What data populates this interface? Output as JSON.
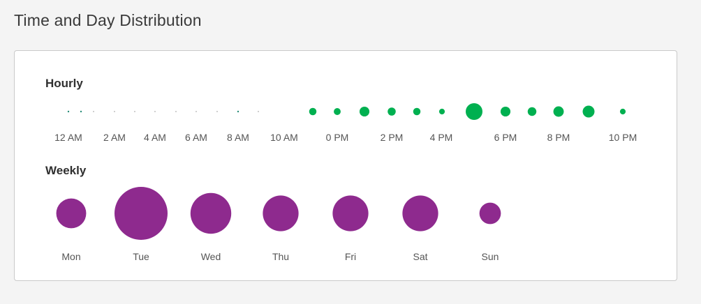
{
  "page": {
    "title": "Time and Day Distribution"
  },
  "colors": {
    "hourly": "#00b050",
    "weekly": "#8e2a8e",
    "tiny": "#2a8e7a"
  },
  "chart_data": [
    {
      "type": "scatter",
      "title": "Hourly",
      "categories": [
        "12 AM",
        "1 AM",
        "2 AM",
        "3 AM",
        "4 AM",
        "5 AM",
        "6 AM",
        "7 AM",
        "8 AM",
        "9 AM",
        "10 AM",
        "11 AM",
        "0 PM",
        "1 PM",
        "2 PM",
        "3 PM",
        "4 PM",
        "5 PM",
        "6 PM",
        "7 PM",
        "8 PM",
        "9 PM",
        "10 PM",
        "11 PM"
      ],
      "values": [
        0.5,
        0.5,
        0.2,
        0.2,
        0.2,
        0.2,
        0.2,
        0.2,
        0.2,
        0.5,
        0.2,
        0,
        25,
        22,
        45,
        30,
        25,
        15,
        130,
        45,
        35,
        50,
        65,
        15
      ],
      "tick_labels": [
        "12 AM",
        "2 AM",
        "4 AM",
        "6 AM",
        "8 AM",
        "10 AM",
        "0 PM",
        "2 PM",
        "4 PM",
        "6 PM",
        "8 PM",
        "10 PM"
      ]
    },
    {
      "type": "scatter",
      "title": "Weekly",
      "categories": [
        "Mon",
        "Tue",
        "Wed",
        "Thu",
        "Fri",
        "Sat",
        "Sun"
      ],
      "values": [
        35,
        110,
        65,
        50,
        50,
        50,
        18
      ]
    }
  ]
}
